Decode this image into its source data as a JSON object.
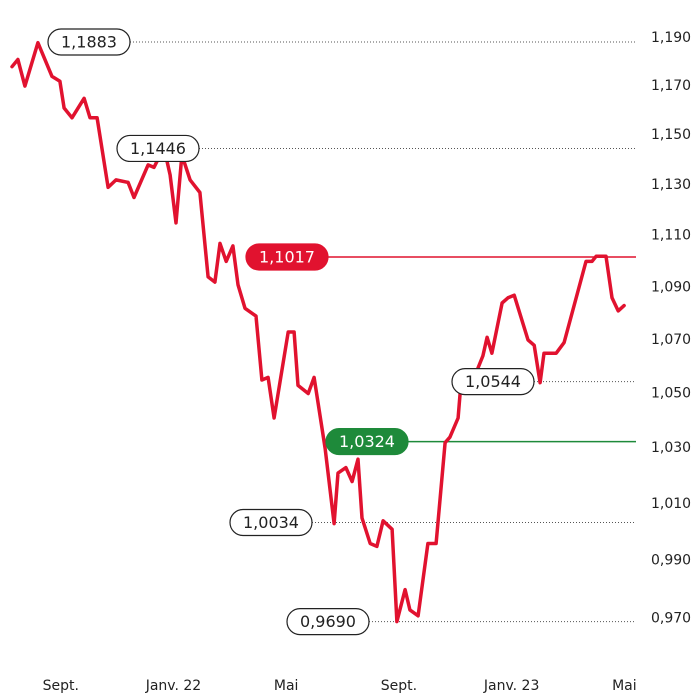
{
  "chart_data": {
    "type": "line",
    "log_y": true,
    "color": "#e1122f",
    "x": [
      -1.73,
      -1.52,
      -1.27,
      -0.81,
      -0.31,
      -0.03,
      0.12,
      0.4,
      0.83,
      1.04,
      1.29,
      1.68,
      1.96,
      2.39,
      2.6,
      3.1,
      3.31,
      3.66,
      3.88,
      4.09,
      4.3,
      4.59,
      4.94,
      5.23,
      5.47,
      5.65,
      5.87,
      6.11,
      6.29,
      6.54,
      6.93,
      7.14,
      7.36,
      7.57,
      8.07,
      8.28,
      8.42,
      8.78,
      8.99,
      9.38,
      9.7,
      9.84,
      10.12,
      10.34,
      10.55,
      10.69,
      10.98,
      11.22,
      11.44,
      11.76,
      11.93,
      12.22,
      12.39,
      12.68,
      13.03,
      13.32,
      13.64,
      13.81,
      14.1,
      14.17,
      14.52,
      14.67,
      14.98,
      15.13,
      15.3,
      15.66,
      15.87,
      16.09,
      16.58,
      16.8,
      17.01,
      17.15,
      17.29,
      17.58,
      17.86,
      18.64,
      18.85,
      19.0,
      19.35,
      19.56,
      19.78,
      19.99
    ],
    "values": [
      1.178,
      1.181,
      1.17,
      1.188,
      1.174,
      1.172,
      1.161,
      1.157,
      1.165,
      1.157,
      1.157,
      1.129,
      1.132,
      1.131,
      1.125,
      1.138,
      1.137,
      1.145,
      1.134,
      1.115,
      1.142,
      1.132,
      1.127,
      1.094,
      1.092,
      1.107,
      1.1,
      1.106,
      1.091,
      1.082,
      1.079,
      1.055,
      1.056,
      1.041,
      1.073,
      1.073,
      1.053,
      1.05,
      1.056,
      1.03,
      1.003,
      1.021,
      1.023,
      1.018,
      1.026,
      1.005,
      0.996,
      0.995,
      1.004,
      1.001,
      0.969,
      0.98,
      0.973,
      0.971,
      0.996,
      0.996,
      1.032,
      1.034,
      1.041,
      1.05,
      1.054,
      1.056,
      1.064,
      1.071,
      1.065,
      1.084,
      1.086,
      1.087,
      1.07,
      1.068,
      1.054,
      1.065,
      1.065,
      1.065,
      1.069,
      1.1,
      1.1,
      1.102,
      1.102,
      1.086,
      1.081,
      1.083
    ],
    "xlim": [
      -1.8,
      20.2
    ],
    "xticks": [
      {
        "value": 0,
        "label": "Sept."
      },
      {
        "value": 4,
        "label": "Janv. 22"
      },
      {
        "value": 8,
        "label": "Mai"
      },
      {
        "value": 12,
        "label": "Sept."
      },
      {
        "value": 16,
        "label": "Janv. 23"
      },
      {
        "value": 20,
        "label": "Mai"
      }
    ],
    "ylim": [
      0.956,
      1.206
    ],
    "yticks": [
      {
        "value": 1.19,
        "label": "1,190"
      },
      {
        "value": 1.17,
        "label": "1,170"
      },
      {
        "value": 1.15,
        "label": "1,150"
      },
      {
        "value": 1.13,
        "label": "1,130"
      },
      {
        "value": 1.11,
        "label": "1,110"
      },
      {
        "value": 1.09,
        "label": "1,090"
      },
      {
        "value": 1.07,
        "label": "1,070"
      },
      {
        "value": 1.05,
        "label": "1,050"
      },
      {
        "value": 1.03,
        "label": "1,030"
      },
      {
        "value": 1.01,
        "label": "1,010"
      },
      {
        "value": 0.99,
        "label": "0,990"
      },
      {
        "value": 0.97,
        "label": "0,970"
      }
    ],
    "annotations": [
      {
        "value": 1.1883,
        "label": "1,1883",
        "style": "outline"
      },
      {
        "value": 1.1446,
        "label": "1,1446",
        "style": "outline"
      },
      {
        "value": 1.1017,
        "label": "1,1017",
        "style": "filled",
        "color": "#e1122f"
      },
      {
        "value": 1.0544,
        "label": "1,0544",
        "style": "outline"
      },
      {
        "value": 1.0324,
        "label": "1,0324",
        "style": "filled",
        "color": "#1e8a3a"
      },
      {
        "value": 1.0034,
        "label": "1,0034",
        "style": "outline"
      },
      {
        "value": 0.969,
        "label": "0,9690",
        "style": "outline"
      }
    ]
  }
}
